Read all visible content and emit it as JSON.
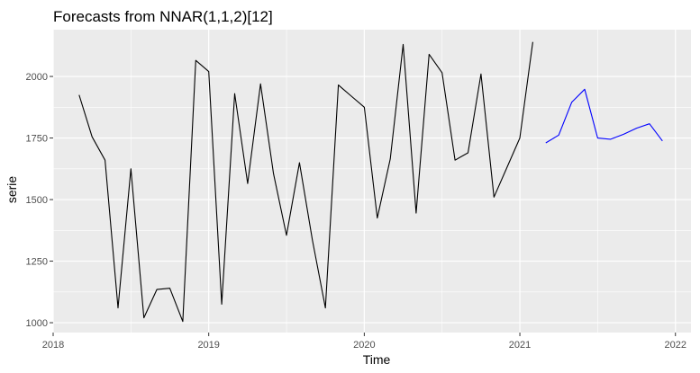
{
  "chart_data": {
    "type": "line",
    "title": "Forecasts from NNAR(1,1,2)[12]",
    "xlabel": "Time",
    "ylabel": "serie",
    "xlim": [
      2018.0,
      2022.1
    ],
    "ylim": [
      960,
      2190
    ],
    "x_ticks": [
      2018,
      2019,
      2020,
      2021,
      2022
    ],
    "x_tick_labels": [
      "2018",
      "2019",
      "2020",
      "2021",
      "2022"
    ],
    "y_ticks": [
      1000,
      1250,
      1500,
      1750,
      2000
    ],
    "y_tick_labels": [
      "1000",
      "1250",
      "1500",
      "1750",
      "2000"
    ],
    "grid": true,
    "panel_background": "#ebebeb",
    "grid_color": "#ffffff",
    "series": [
      {
        "role": "observed",
        "color": "#000000",
        "x": [
          2018.1667,
          2018.25,
          2018.3333,
          2018.4167,
          2018.5,
          2018.5833,
          2018.6667,
          2018.75,
          2018.8333,
          2018.9167,
          2019.0,
          2019.0833,
          2019.1667,
          2019.25,
          2019.3333,
          2019.4167,
          2019.5,
          2019.5833,
          2019.6667,
          2019.75,
          2019.8333,
          2019.9167,
          2020.0,
          2020.0833,
          2020.1667,
          2020.25,
          2020.3333,
          2020.4167,
          2020.5,
          2020.5833,
          2020.6667,
          2020.75,
          2020.8333,
          2020.9167,
          2021.0,
          2021.0833
        ],
        "values": [
          1925,
          1755,
          1660,
          1060,
          1625,
          1020,
          1135,
          1140,
          1005,
          2065,
          2020,
          1075,
          1930,
          1565,
          1970,
          1605,
          1355,
          1650,
          1335,
          1060,
          1965,
          1920,
          1875,
          1425,
          1665,
          2130,
          1445,
          2090,
          2015,
          1660,
          1690,
          2010,
          1510,
          1630,
          1750,
          2140
        ]
      },
      {
        "role": "forecast",
        "color": "#0000ff",
        "x": [
          2021.1667,
          2021.25,
          2021.3333,
          2021.4167,
          2021.5,
          2021.5833,
          2021.6667,
          2021.75,
          2021.8333,
          2021.9167
        ],
        "values": [
          1730,
          1762,
          1895,
          1948,
          1750,
          1745,
          1765,
          1790,
          1808,
          1738
        ]
      }
    ]
  }
}
